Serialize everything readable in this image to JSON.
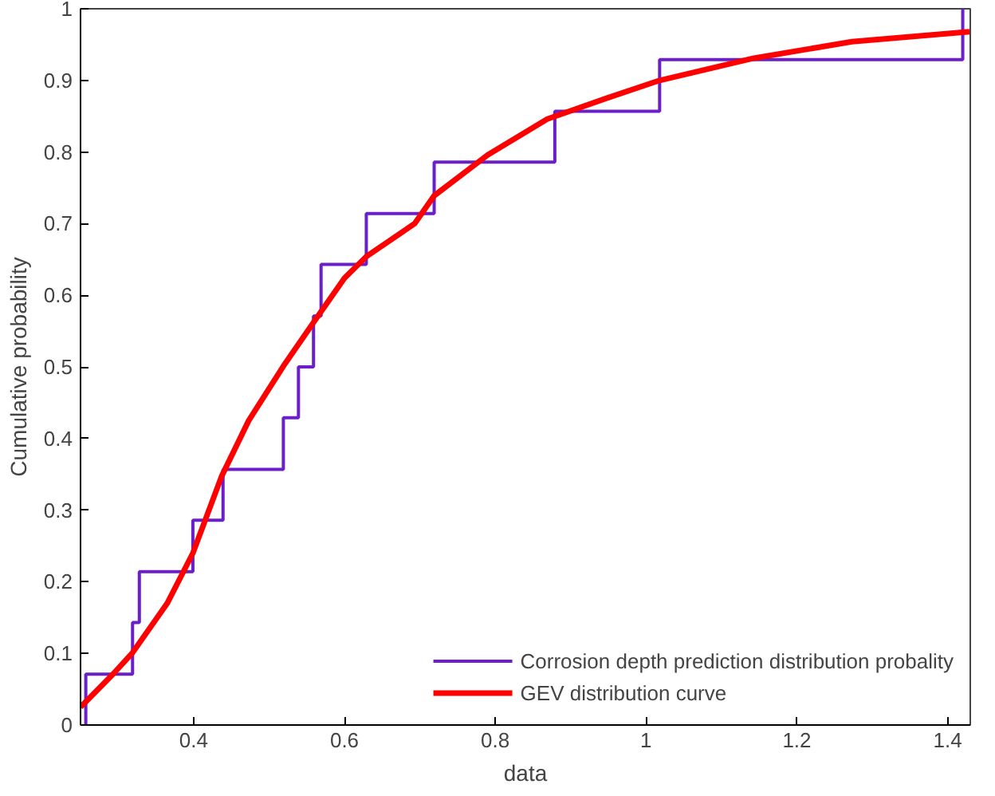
{
  "chart_data": {
    "type": "line",
    "xlabel": "data",
    "ylabel": "Cumulative probability",
    "xlim": [
      0.25,
      1.43
    ],
    "ylim": [
      0,
      1
    ],
    "xticks": [
      0.4,
      0.6,
      0.8,
      1,
      1.2,
      1.4
    ],
    "yticks": [
      0,
      0.1,
      0.2,
      0.3,
      0.4,
      0.5,
      0.6,
      0.7,
      0.8,
      0.9,
      1
    ],
    "grid": false,
    "legend": "bottom right",
    "series": [
      {
        "name": "Corrosion depth prediction distribution probality",
        "type": "step",
        "color": "#6a1fc8",
        "x": [
          0.257,
          0.257,
          0.319,
          0.328,
          0.399,
          0.439,
          0.519,
          0.539,
          0.559,
          0.569,
          0.629,
          0.719,
          0.879,
          1.018,
          1.42
        ],
        "values": [
          0,
          0.071,
          0.143,
          0.214,
          0.286,
          0.357,
          0.429,
          0.5,
          0.571,
          0.643,
          0.714,
          0.786,
          0.857,
          0.929,
          1
        ]
      },
      {
        "name": "GEV distribution curve",
        "color": "#ff0000",
        "x": [
          0.25,
          0.293,
          0.319,
          0.365,
          0.399,
          0.437,
          0.473,
          0.519,
          0.559,
          0.6,
          0.629,
          0.693,
          0.719,
          0.79,
          0.869,
          0.95,
          1.018,
          1.143,
          1.273,
          1.429
        ],
        "values": [
          0.025,
          0.071,
          0.101,
          0.17,
          0.24,
          0.347,
          0.425,
          0.501,
          0.562,
          0.624,
          0.654,
          0.7,
          0.739,
          0.796,
          0.846,
          0.876,
          0.9,
          0.931,
          0.954,
          0.968
        ]
      }
    ]
  }
}
